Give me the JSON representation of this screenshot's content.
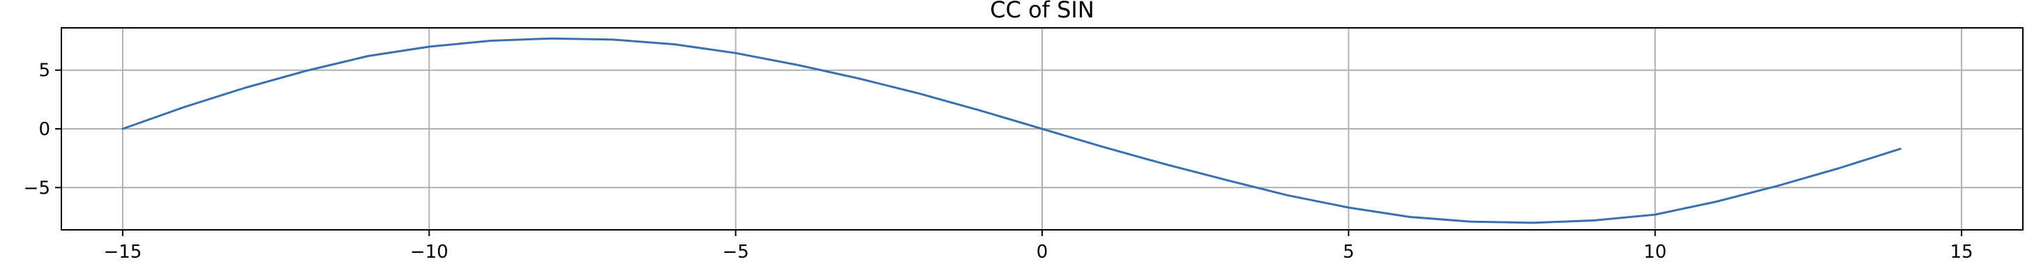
{
  "chart_data": {
    "type": "line",
    "title": "CC of SIN",
    "xlabel": "",
    "ylabel": "",
    "xlim": [
      -16,
      16
    ],
    "ylim": [
      -8.6,
      8.6
    ],
    "grid": true,
    "x_ticks": [
      -15,
      -10,
      -5,
      0,
      5,
      10,
      15
    ],
    "x_tick_labels": [
      "−15",
      "−10",
      "−5",
      "0",
      "5",
      "10",
      "15"
    ],
    "y_ticks": [
      -5,
      0,
      5
    ],
    "y_tick_labels": [
      "−5",
      "0",
      "5"
    ],
    "series": [
      {
        "color": "#3a70b0",
        "x": [
          -15,
          -14,
          -13,
          -12,
          -11,
          -10,
          -9,
          -8,
          -7,
          -6,
          -5,
          -4,
          -3,
          -2,
          -1,
          0,
          1,
          2,
          3,
          4,
          5,
          6,
          7,
          8,
          9,
          10,
          11,
          12,
          13,
          14
        ],
        "y": [
          0.0,
          1.85,
          3.5,
          4.95,
          6.2,
          7.0,
          7.5,
          7.7,
          7.6,
          7.2,
          6.45,
          5.45,
          4.3,
          3.0,
          1.55,
          0.0,
          -1.55,
          -3.0,
          -4.35,
          -5.65,
          -6.7,
          -7.5,
          -7.9,
          -8.0,
          -7.8,
          -7.3,
          -6.2,
          -4.85,
          -3.35,
          -1.7
        ]
      }
    ]
  }
}
